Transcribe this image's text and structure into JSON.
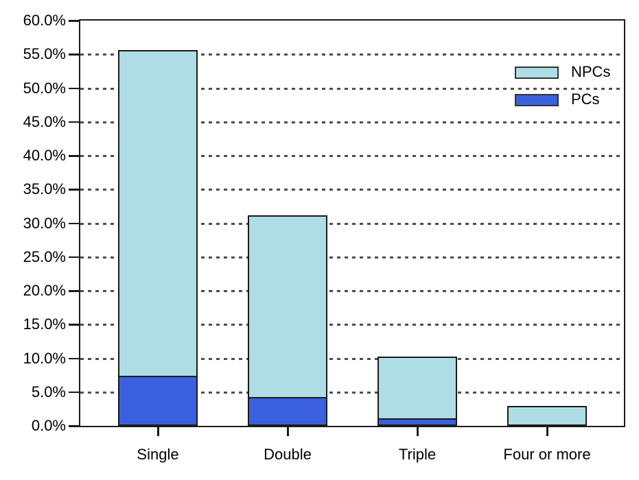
{
  "chart_data": {
    "type": "bar",
    "stacked": true,
    "title": "",
    "xlabel": "",
    "ylabel": "",
    "categories": [
      "Single",
      "Double",
      "Triple",
      "Four or more"
    ],
    "series": [
      {
        "name": "PCs",
        "color": "#3b60de",
        "values": [
          7.5,
          4.3,
          1.2,
          0.3
        ]
      },
      {
        "name": "NPCs",
        "color": "#aedde5",
        "values": [
          48.1,
          26.9,
          9.1,
          2.6
        ]
      }
    ],
    "stacked_totals": [
      55.6,
      31.2,
      10.3,
      2.9
    ],
    "ylim": [
      0,
      60
    ],
    "ytick_step": 5,
    "ytick_labels": [
      "0.0%",
      "5.0%",
      "10.0%",
      "15.0%",
      "20.0%",
      "25.0%",
      "30.0%",
      "35.0%",
      "40.0%",
      "45.0%",
      "50.0%",
      "55.0%",
      "60.0%"
    ],
    "grid": "horizontal-dashed",
    "legend_position": "top-right",
    "legend": [
      {
        "label": "NPCs",
        "color": "#aedde5"
      },
      {
        "label": "PCs",
        "color": "#3b60de"
      }
    ]
  },
  "colors": {
    "background": "#ffffff",
    "axis": "#1a1a1a",
    "bar_border": "#1a1a1a",
    "gridline": "#4d4d4d",
    "text": "#000000"
  }
}
